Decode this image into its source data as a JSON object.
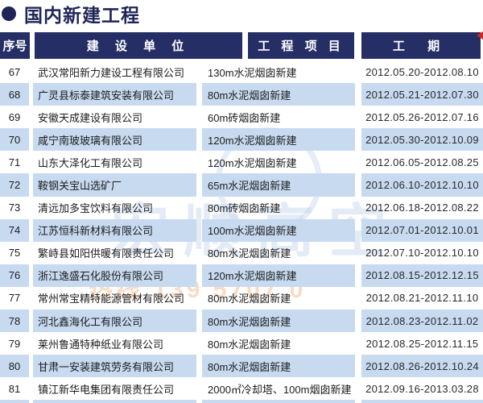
{
  "title": "国内新建工程",
  "colors": {
    "header_bg": "#262e66",
    "title_navy": "#1f2557",
    "stripe_blue": "#c7daf0",
    "accent_red": "#cc2a1e"
  },
  "watermark": {
    "brand": "宏顺高空",
    "hotline": "热线 139 5707 0"
  },
  "table": {
    "headers": [
      "序号",
      "建 设 单 位",
      "工 程 项 目",
      "工 期"
    ],
    "rows": [
      {
        "no": "67",
        "company": "武汉常阳新力建设工程有限公司",
        "project": "130m水泥烟囱新建",
        "period": "2012.05.20-2012.08.10"
      },
      {
        "no": "68",
        "company": "广灵县标泰建筑安装有限公司",
        "project": "80m水泥烟囱新建",
        "period": "2012.05.21-2012.07.30"
      },
      {
        "no": "69",
        "company": "安徽天成建设有限公司",
        "project": "60m砖烟囱新建",
        "period": "2012.05.26-2012.07.16"
      },
      {
        "no": "70",
        "company": "咸宁南玻玻璃有限公司",
        "project": "120m水泥烟囱新建",
        "period": "2012.05.30-2012.10.09"
      },
      {
        "no": "71",
        "company": "山东大泽化工有限公司",
        "project": "120m水泥烟囱新建",
        "period": "2012.06.05-2012.08.25"
      },
      {
        "no": "72",
        "company": "鞍钢关宝山选矿厂",
        "project": "65m水泥烟囱新建",
        "period": "2012.06.10-2012.10.10"
      },
      {
        "no": "73",
        "company": "清远加多宝饮料有限公司",
        "project": "80m砖烟囱新建",
        "period": "2012.06.18-2012.08.22"
      },
      {
        "no": "74",
        "company": "江苏恒科新材料有限公司",
        "project": "100m水泥烟囱新建",
        "period": "2012.07.01-2012.10.01"
      },
      {
        "no": "75",
        "company": "繁峙县如阳供暖有限责任公司",
        "project": "80m水泥烟囱新建",
        "period": "2012.07.10-2012.10.10"
      },
      {
        "no": "76",
        "company": "浙江逸盛石化股份有限公司",
        "project": "120m水泥烟囱新建",
        "period": "2012.08.15-2012.12.15"
      },
      {
        "no": "77",
        "company": "常州常宝精特能源管材有限公司",
        "project": "80m水泥烟囱新建",
        "period": "2012.08.21-2012.11.10"
      },
      {
        "no": "78",
        "company": "河北鑫海化工有限公司",
        "project": "80m水泥烟囱新建",
        "period": "2012.08.23-2012.11.02"
      },
      {
        "no": "79",
        "company": "莱州鲁通特种纸业有限公司",
        "project": "80m水泥烟囱新建",
        "period": "2012.08.25-2012.11.15"
      },
      {
        "no": "80",
        "company": "甘肃一安装建筑劳务有限公司",
        "project": "80m水泥烟囱新建",
        "period": "2012.08.26-2012.10.24"
      },
      {
        "no": "81",
        "company": "镇江新华电集团有限责任公司",
        "project": "2000㎡冷却塔、100m烟囱新建",
        "period": "2012.09.16-2013.03.28"
      }
    ]
  }
}
